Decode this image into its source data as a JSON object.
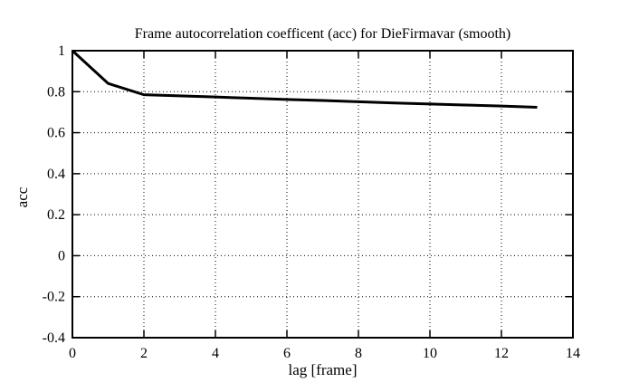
{
  "figure": {
    "background": "#ffffff",
    "foreground": "#000000"
  },
  "chart_data": {
    "type": "line",
    "title": "Frame autocorrelation coefficent (acc) for DieFirmavar (smooth)",
    "xlabel": "lag [frame]",
    "ylabel": "acc",
    "xlim": [
      0,
      14
    ],
    "ylim": [
      -0.4,
      1
    ],
    "xticks": {
      "values": [
        0,
        2,
        4,
        6,
        8,
        10,
        12,
        14
      ],
      "labels": [
        "0",
        "2",
        "4",
        "6",
        "8",
        "10",
        "12",
        "14"
      ]
    },
    "yticks": {
      "values": [
        1,
        0.8,
        0.6,
        0.4,
        0.2,
        0,
        -0.2,
        -0.4
      ],
      "labels": [
        "1",
        "0.8",
        "0.6",
        "0.4",
        "0.2",
        "0",
        "-0.2",
        "-0.4"
      ]
    },
    "grid": "dotted",
    "legend": "none",
    "series": [
      {
        "name": "acc",
        "color": "#000000",
        "line_width": 3,
        "x": [
          0,
          1,
          2,
          3,
          4,
          5,
          6,
          7,
          8,
          9,
          10,
          11,
          12,
          13
        ],
        "y": [
          1.0,
          0.84,
          0.785,
          0.78,
          0.774,
          0.768,
          0.762,
          0.757,
          0.751,
          0.745,
          0.74,
          0.735,
          0.73,
          0.724
        ]
      }
    ]
  }
}
